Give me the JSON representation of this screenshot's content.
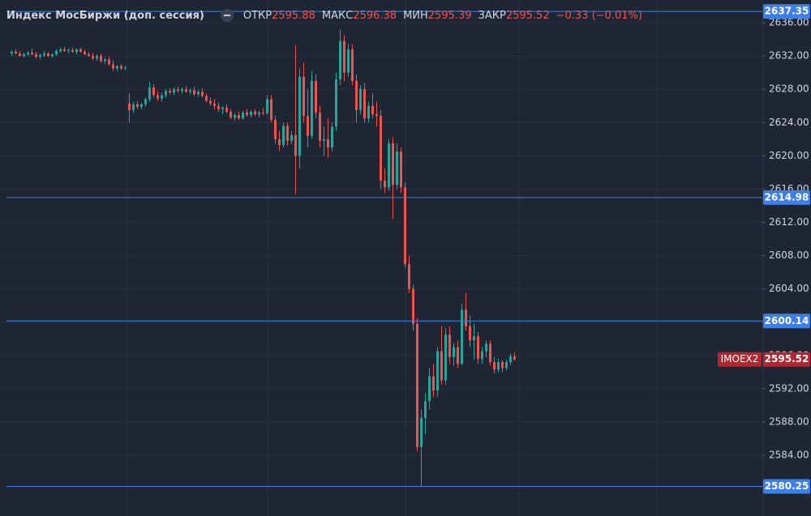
{
  "header": {
    "title": "Индекс МосБиржи (доп. сессия)",
    "open_label": "ОТКР",
    "open": 2595.88,
    "high_label": "МАКС",
    "high": 2596.38,
    "low_label": "МИН",
    "low": 2595.39,
    "close_label": "ЗАКР",
    "close": 2595.52,
    "change": "−0.33 (−0.01%)"
  },
  "chart_data": {
    "type": "candlestick",
    "ylim": [
      2576.7,
      2638.73
    ],
    "yticks": [
      {
        "value": 2584,
        "label": "2584.00"
      },
      {
        "value": 2588,
        "label": "2588.00"
      },
      {
        "value": 2592,
        "label": "2592.00"
      },
      {
        "value": 2596,
        "label": "2596.00"
      },
      {
        "value": 2600,
        "label": "2600.00"
      },
      {
        "value": 2604,
        "label": "2604.00"
      },
      {
        "value": 2608,
        "label": "2608.00"
      },
      {
        "value": 2612,
        "label": "2612.00"
      },
      {
        "value": 2616,
        "label": "2616.00"
      },
      {
        "value": 2620,
        "label": "2620.00"
      },
      {
        "value": 2624,
        "label": "2624.00"
      },
      {
        "value": 2628,
        "label": "2628.00"
      },
      {
        "value": 2632,
        "label": "2632.00"
      },
      {
        "value": 2636,
        "label": "2636.00"
      }
    ],
    "grid": true,
    "up_color": "#26a69a",
    "down_color": "#ef5350",
    "hlines": [
      2637.35,
      2614.98,
      2600.14,
      2580.25
    ],
    "hline_color": "#3d7fe6",
    "last_price": {
      "symbol": "IMOEX2",
      "value": 2595.52,
      "color": "#b3262f"
    },
    "ohlc": [
      [
        2632.3,
        2632.7,
        2632.0,
        2632.5
      ],
      [
        2632.5,
        2632.8,
        2632.2,
        2632.3
      ],
      [
        2632.3,
        2632.6,
        2631.9,
        2632.0
      ],
      [
        2632.0,
        2632.4,
        2631.8,
        2632.2
      ],
      [
        2632.2,
        2632.6,
        2632.0,
        2632.4
      ],
      [
        2632.4,
        2632.9,
        2632.1,
        2632.2
      ],
      [
        2632.2,
        2632.5,
        2631.7,
        2631.9
      ],
      [
        2631.9,
        2632.3,
        2631.6,
        2632.1
      ],
      [
        2632.1,
        2632.6,
        2631.9,
        2632.3
      ],
      [
        2632.3,
        2632.5,
        2631.9,
        2632.0
      ],
      [
        2632.0,
        2632.3,
        2631.8,
        2632.2
      ],
      [
        2632.2,
        2632.8,
        2632.0,
        2632.6
      ],
      [
        2632.6,
        2633.0,
        2632.4,
        2632.8
      ],
      [
        2632.8,
        2633.1,
        2632.5,
        2632.6
      ],
      [
        2632.6,
        2632.9,
        2632.3,
        2632.7
      ],
      [
        2632.7,
        2633.0,
        2632.4,
        2632.5
      ],
      [
        2632.5,
        2632.9,
        2632.2,
        2632.8
      ],
      [
        2632.8,
        2633.0,
        2632.4,
        2632.5
      ],
      [
        2632.5,
        2632.8,
        2632.1,
        2632.2
      ],
      [
        2632.2,
        2632.5,
        2631.9,
        2632.0
      ],
      [
        2632.0,
        2632.4,
        2631.5,
        2631.7
      ],
      [
        2631.7,
        2632.2,
        2631.4,
        2632.0
      ],
      [
        2632.0,
        2632.3,
        2631.2,
        2631.4
      ],
      [
        2631.4,
        2631.8,
        2631.0,
        2631.6
      ],
      [
        2631.6,
        2631.9,
        2630.8,
        2631.0
      ],
      [
        2631.0,
        2631.5,
        2630.2,
        2630.5
      ],
      [
        2630.5,
        2630.9,
        2630.1,
        2630.8
      ],
      [
        2630.8,
        2631.0,
        2630.3,
        2630.5
      ],
      [
        2630.5,
        2630.8,
        2630.3,
        2630.6
      ],
      [
        2626.3,
        2627.5,
        2624.0,
        2625.5
      ],
      [
        2625.5,
        2626.5,
        2625.2,
        2626.2
      ],
      [
        2626.2,
        2626.6,
        2625.6,
        2625.9
      ],
      [
        2625.9,
        2626.4,
        2625.6,
        2626.2
      ],
      [
        2626.2,
        2627.0,
        2625.9,
        2626.8
      ],
      [
        2626.8,
        2628.9,
        2626.5,
        2628.2
      ],
      [
        2628.2,
        2628.6,
        2627.0,
        2627.3
      ],
      [
        2627.3,
        2627.8,
        2626.6,
        2626.9
      ],
      [
        2626.9,
        2627.6,
        2626.5,
        2627.3
      ],
      [
        2627.3,
        2628.0,
        2627.0,
        2627.8
      ],
      [
        2627.8,
        2628.1,
        2627.4,
        2627.6
      ],
      [
        2627.6,
        2628.2,
        2627.3,
        2628.0
      ],
      [
        2628.0,
        2628.3,
        2627.6,
        2627.8
      ],
      [
        2627.8,
        2628.2,
        2627.5,
        2628.0
      ],
      [
        2628.0,
        2628.4,
        2627.6,
        2627.7
      ],
      [
        2627.7,
        2628.1,
        2627.4,
        2627.9
      ],
      [
        2627.9,
        2628.3,
        2627.2,
        2627.4
      ],
      [
        2627.4,
        2627.9,
        2627.1,
        2627.7
      ],
      [
        2627.7,
        2628.1,
        2627.0,
        2627.2
      ],
      [
        2627.2,
        2627.5,
        2626.4,
        2626.6
      ],
      [
        2626.6,
        2627.0,
        2626.0,
        2626.3
      ],
      [
        2626.3,
        2626.8,
        2625.6,
        2626.0
      ],
      [
        2626.0,
        2626.4,
        2625.3,
        2625.6
      ],
      [
        2625.6,
        2626.0,
        2625.0,
        2625.8
      ],
      [
        2625.8,
        2626.2,
        2625.1,
        2625.3
      ],
      [
        2625.3,
        2625.6,
        2624.4,
        2624.6
      ],
      [
        2624.6,
        2625.1,
        2624.2,
        2624.9
      ],
      [
        2624.9,
        2625.3,
        2624.3,
        2624.5
      ],
      [
        2624.5,
        2625.4,
        2624.3,
        2625.2
      ],
      [
        2625.2,
        2625.6,
        2624.7,
        2624.9
      ],
      [
        2624.9,
        2625.5,
        2624.6,
        2625.3
      ],
      [
        2625.3,
        2625.6,
        2624.8,
        2625.0
      ],
      [
        2625.0,
        2625.4,
        2624.6,
        2625.2
      ],
      [
        2625.2,
        2625.7,
        2624.9,
        2625.1
      ],
      [
        2625.1,
        2627.3,
        2624.9,
        2626.8
      ],
      [
        2626.8,
        2627.3,
        2624.0,
        2624.3
      ],
      [
        2624.3,
        2624.8,
        2621.5,
        2622.0
      ],
      [
        2622.0,
        2623.0,
        2620.6,
        2621.3
      ],
      [
        2621.3,
        2624.0,
        2621.0,
        2623.6
      ],
      [
        2623.6,
        2624.0,
        2621.2,
        2621.8
      ],
      [
        2621.8,
        2623.0,
        2621.4,
        2622.5
      ],
      [
        2622.5,
        2633.3,
        2615.4,
        2620.0
      ],
      [
        2620.0,
        2630.5,
        2618.5,
        2629.5
      ],
      [
        2629.5,
        2631.2,
        2624.0,
        2624.8
      ],
      [
        2624.8,
        2628.0,
        2621.0,
        2622.4
      ],
      [
        2622.4,
        2630.2,
        2622.0,
        2629.0
      ],
      [
        2629.0,
        2629.8,
        2624.5,
        2625.2
      ],
      [
        2625.2,
        2626.0,
        2621.0,
        2621.8
      ],
      [
        2621.8,
        2623.5,
        2620.0,
        2622.0
      ],
      [
        2622.0,
        2624.5,
        2619.8,
        2621.0
      ],
      [
        2621.0,
        2624.0,
        2620.5,
        2623.5
      ],
      [
        2623.5,
        2630.0,
        2623.0,
        2629.2
      ],
      [
        2629.2,
        2635.2,
        2628.5,
        2633.8
      ],
      [
        2633.8,
        2634.5,
        2629.0,
        2630.0
      ],
      [
        2630.0,
        2633.5,
        2629.5,
        2632.8
      ],
      [
        2632.8,
        2633.4,
        2628.5,
        2629.0
      ],
      [
        2629.0,
        2629.8,
        2624.0,
        2625.5
      ],
      [
        2625.5,
        2628.5,
        2625.0,
        2628.0
      ],
      [
        2628.0,
        2628.8,
        2624.0,
        2624.5
      ],
      [
        2624.5,
        2626.5,
        2624.0,
        2626.0
      ],
      [
        2626.0,
        2627.5,
        2624.5,
        2625.0
      ],
      [
        2625.0,
        2626.5,
        2623.5,
        2624.8
      ],
      [
        2624.8,
        2625.5,
        2616.0,
        2617.0
      ],
      [
        2617.0,
        2618.5,
        2615.5,
        2616.2
      ],
      [
        2616.2,
        2622.0,
        2615.8,
        2621.5
      ],
      [
        2621.5,
        2622.2,
        2612.4,
        2616.5
      ],
      [
        2616.5,
        2621.5,
        2616.0,
        2620.5
      ],
      [
        2620.5,
        2621.0,
        2615.5,
        2616.2
      ],
      [
        2616.2,
        2616.8,
        2606.5,
        2607.0
      ],
      [
        2607.0,
        2608.0,
        2603.5,
        2604.0
      ],
      [
        2604.0,
        2604.5,
        2599.0,
        2599.8
      ],
      [
        2599.8,
        2600.5,
        2584.5,
        2585.0
      ],
      [
        2585.0,
        2589.5,
        2580.25,
        2588.5
      ],
      [
        2588.5,
        2591.5,
        2586.5,
        2590.5
      ],
      [
        2590.5,
        2594.5,
        2589.5,
        2593.5
      ],
      [
        2593.5,
        2595.0,
        2591.0,
        2591.8
      ],
      [
        2591.8,
        2597.0,
        2591.0,
        2596.5
      ],
      [
        2596.5,
        2599.5,
        2592.5,
        2593.0
      ],
      [
        2593.0,
        2599.3,
        2592.5,
        2598.5
      ],
      [
        2598.5,
        2599.5,
        2595.0,
        2595.8
      ],
      [
        2595.8,
        2597.5,
        2594.8,
        2597.0
      ],
      [
        2597.0,
        2597.8,
        2594.5,
        2595.0
      ],
      [
        2595.0,
        2602.2,
        2594.8,
        2601.5
      ],
      [
        2601.5,
        2603.5,
        2599.0,
        2599.5
      ],
      [
        2599.5,
        2600.8,
        2597.0,
        2597.8
      ],
      [
        2597.8,
        2599.8,
        2595.5,
        2598.3
      ],
      [
        2598.3,
        2598.8,
        2595.0,
        2595.6
      ],
      [
        2595.6,
        2597.0,
        2595.0,
        2596.5
      ],
      [
        2596.5,
        2597.8,
        2595.8,
        2597.4
      ],
      [
        2597.4,
        2597.8,
        2594.8,
        2595.2
      ],
      [
        2595.2,
        2595.8,
        2593.8,
        2594.3
      ],
      [
        2594.3,
        2595.6,
        2594.0,
        2595.2
      ],
      [
        2595.2,
        2595.4,
        2594.0,
        2594.5
      ],
      [
        2594.5,
        2595.5,
        2594.2,
        2595.2
      ],
      [
        2595.2,
        2596.2,
        2594.8,
        2595.88
      ],
      [
        2595.88,
        2596.38,
        2595.39,
        2595.52
      ]
    ]
  }
}
